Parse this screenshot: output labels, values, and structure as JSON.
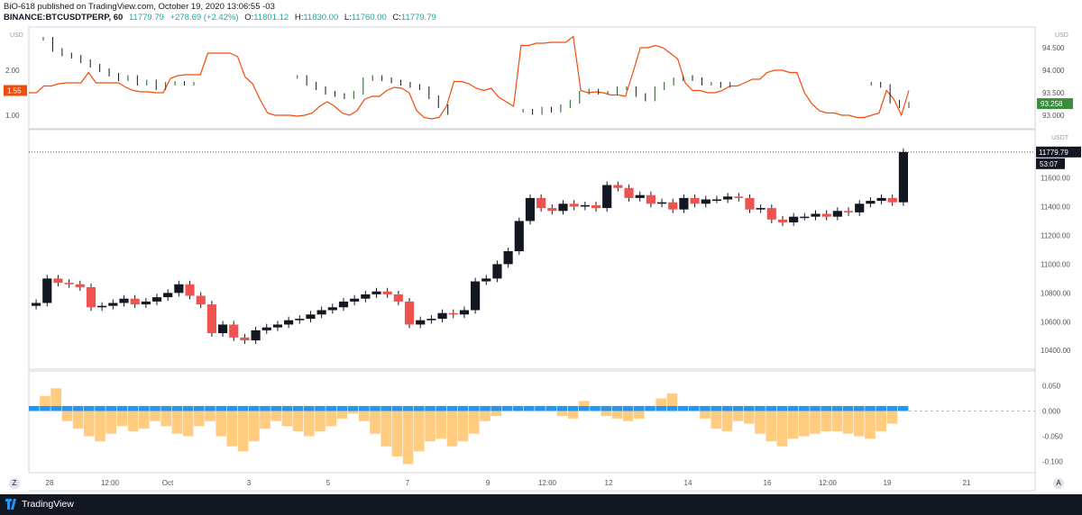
{
  "header": {
    "published": "BiO-618 published on TradingView.com, October 19, 2020 13:06:55 -03",
    "symbol": "BINANCE:BTCUSDTPERP, 60",
    "last": "11779.79",
    "change": "+278.69 (+2.42%)",
    "o_label": "O:",
    "o_val": "11801.12",
    "h_label": "H:",
    "h_val": "11830.00",
    "l_label": "L:",
    "l_val": "11760.00",
    "c_label": "C:",
    "c_val": "11779.79"
  },
  "footer": {
    "brand": "TradingView",
    "z_button": "Z",
    "a_button": "A"
  },
  "colors": {
    "up": "#26a69a",
    "down": "#ef5350",
    "red_line": "#f24c0c",
    "blue_hist": "#2196f3",
    "orange_hist": "#ffcc80",
    "dark_candle": "#131722"
  },
  "chart_data": [
    {
      "type": "line",
      "panel": "overlay",
      "left_axis": {
        "label": "USD",
        "ticks": [
          "2.00",
          "1.50",
          "1.00"
        ],
        "current": "1.55"
      },
      "right_axis": {
        "label": "USD",
        "ticks": [
          "94.500",
          "94.000",
          "93.500",
          "93.000"
        ],
        "current": "93.258"
      },
      "series": [
        {
          "axis": "left",
          "values": [
            1.5,
            1.5,
            1.65,
            1.65,
            1.7,
            1.72,
            1.72,
            1.72,
            1.95,
            1.72,
            1.72,
            1.72,
            1.72,
            1.62,
            1.55,
            1.52,
            1.52,
            1.5,
            1.5,
            1.82,
            1.88,
            1.9,
            1.9,
            1.9,
            2.38,
            2.38,
            2.38,
            2.38,
            2.3,
            1.85,
            1.7,
            1.35,
            1.05,
            1.0,
            1.0,
            1.0,
            0.98,
            1.0,
            1.05,
            1.2,
            1.3,
            1.2,
            1.05,
            1.0,
            1.1,
            1.35,
            1.42,
            1.42,
            1.55,
            1.62,
            1.6,
            1.5,
            1.1,
            0.95,
            0.92,
            0.95,
            1.2,
            1.75,
            1.75,
            1.7,
            1.6,
            1.55,
            1.6,
            1.4,
            1.3,
            1.2,
            2.55,
            2.55,
            2.6,
            2.6,
            2.62,
            2.62,
            2.62,
            2.75,
            1.55,
            1.5,
            1.52,
            1.5,
            1.45,
            1.45,
            1.42,
            1.95,
            2.5,
            2.5,
            2.55,
            2.5,
            2.38,
            2.25,
            1.72,
            1.55,
            1.55,
            1.5,
            1.5,
            1.55,
            1.65,
            1.65,
            1.72,
            1.8,
            1.8,
            1.95,
            2.0,
            2.0,
            1.95,
            1.95,
            1.5,
            1.25,
            1.1,
            1.05,
            1.05,
            1.0,
            1.0,
            0.95,
            0.95,
            1.0,
            1.05,
            1.55,
            1.35,
            1.0,
            1.55
          ]
        },
        {
          "axis": "right",
          "values": [
            94.7,
            94.45,
            94.35,
            94.3,
            94.2,
            94.1,
            94.0,
            93.9,
            93.8,
            93.85,
            93.7,
            93.75,
            93.6,
            93.7,
            93.72,
            93.7,
            93.7,
            null,
            null,
            null,
            null,
            null,
            null,
            null,
            null,
            null,
            null,
            93.85,
            93.7,
            93.6,
            93.5,
            93.45,
            93.4,
            93.5,
            93.8,
            93.85,
            93.8,
            93.75,
            93.7,
            93.65,
            93.6,
            93.4,
            93.2,
            93.05,
            null,
            null,
            null,
            null,
            null,
            null,
            null,
            93.1,
            93.05,
            93.15,
            93.1,
            93.2,
            93.3,
            93.5,
            93.55,
            93.5,
            93.5,
            93.6,
            93.6,
            93.45,
            93.35,
            93.6,
            93.7,
            93.8,
            93.85,
            93.8,
            93.7,
            93.7,
            93.65,
            93.7,
            null,
            null,
            null,
            null,
            null,
            null,
            null,
            null,
            null,
            null,
            null,
            null,
            null,
            null,
            93.7,
            93.65,
            93.3,
            93.2,
            93.258
          ]
        }
      ]
    },
    {
      "type": "candlestick",
      "panel": "main",
      "right_axis": {
        "label": "USDT",
        "ticks": [
          "11600.00",
          "11400.00",
          "11200.00",
          "11000.00",
          "10800.00",
          "10600.00",
          "10400.00"
        ]
      },
      "last_price": "11779.79",
      "countdown": "53:07",
      "close": [
        10730,
        10900,
        10870,
        10860,
        10840,
        10700,
        10710,
        10730,
        10760,
        10720,
        10740,
        10770,
        10800,
        10860,
        10780,
        10720,
        10520,
        10580,
        10490,
        10470,
        10540,
        10560,
        10580,
        10610,
        10620,
        10650,
        10680,
        10700,
        10740,
        10760,
        10790,
        10810,
        10790,
        10740,
        10580,
        10610,
        10620,
        10660,
        10650,
        10680,
        10880,
        10900,
        11000,
        11090,
        11300,
        11460,
        11390,
        11370,
        11420,
        11400,
        11410,
        11390,
        11550,
        11530,
        11460,
        11480,
        11420,
        11430,
        11380,
        11460,
        11420,
        11450,
        11450,
        11470,
        11460,
        11380,
        11390,
        11310,
        11290,
        11330,
        11330,
        11350,
        11330,
        11370,
        11360,
        11420,
        11440,
        11460,
        11430,
        11779.79
      ],
      "volume": []
    },
    {
      "type": "bar",
      "panel": "oscillator",
      "right_axis": {
        "ticks": [
          "0.050",
          "0.000",
          "-0.050",
          "-0.100"
        ]
      },
      "series": [
        {
          "name": "",
          "values": [
            0.01,
            0.03,
            0.045,
            -0.02,
            -0.035,
            -0.05,
            -0.06,
            -0.045,
            -0.03,
            -0.04,
            -0.035,
            -0.02,
            -0.03,
            -0.045,
            -0.05,
            -0.03,
            -0.02,
            -0.05,
            -0.07,
            -0.08,
            -0.06,
            -0.035,
            -0.02,
            -0.03,
            -0.04,
            -0.05,
            -0.04,
            -0.03,
            -0.015,
            -0.005,
            -0.02,
            -0.045,
            -0.07,
            -0.09,
            -0.105,
            -0.08,
            -0.06,
            -0.055,
            -0.07,
            -0.06,
            -0.045,
            -0.02,
            -0.01,
            0.005,
            0.01,
            0.01,
            0.005,
            0.0,
            -0.01,
            -0.015,
            0.02,
            0.01,
            -0.01,
            -0.015,
            -0.02,
            -0.015,
            0.005,
            0.025,
            0.035,
            0.01,
            0.0,
            -0.015,
            -0.035,
            -0.04,
            -0.02,
            -0.025,
            -0.045,
            -0.06,
            -0.07,
            -0.055,
            -0.05,
            -0.045,
            -0.04,
            -0.04,
            -0.045,
            -0.05,
            -0.055,
            -0.04,
            -0.025,
            0.01
          ]
        }
      ]
    }
  ],
  "x_axis": {
    "labels": [
      "28",
      "12:00",
      "Oct",
      "3",
      "5",
      "7",
      "9",
      "12:00",
      "12",
      "14",
      "16",
      "12:00",
      "19",
      "21"
    ]
  }
}
